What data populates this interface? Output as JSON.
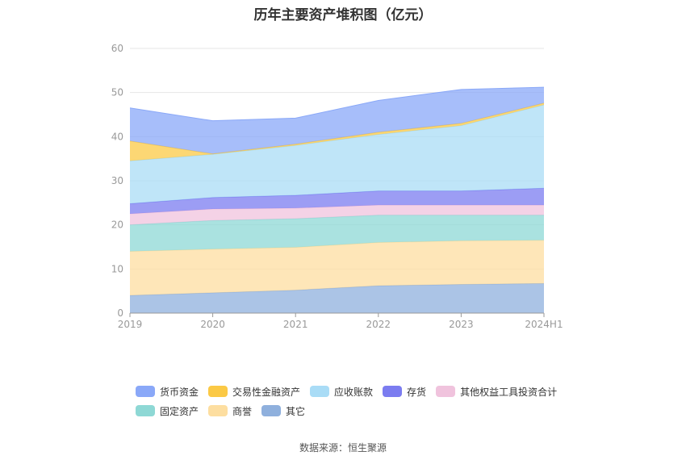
{
  "title": "历年主要资产堆积图（亿元）",
  "source": "数据来源：恒生聚源",
  "chart_data": {
    "type": "area",
    "stacked": true,
    "x": [
      "2019",
      "2020",
      "2021",
      "2022",
      "2023",
      "2024H1"
    ],
    "ylim": [
      0,
      60
    ],
    "yticks": [
      0,
      10,
      20,
      30,
      40,
      50,
      60
    ],
    "grid": true,
    "legend_position": "bottom",
    "series": [
      {
        "name": "其它",
        "color": "#8fb0dd",
        "values": [
          4.0,
          4.6,
          5.2,
          6.2,
          6.5,
          6.7
        ]
      },
      {
        "name": "商誉",
        "color": "#fddea0",
        "values": [
          10.0,
          9.9,
          9.7,
          9.8,
          9.9,
          9.8
        ]
      },
      {
        "name": "固定资产",
        "color": "#8ed8d5",
        "values": [
          6.0,
          6.5,
          6.5,
          6.2,
          5.8,
          5.7
        ]
      },
      {
        "name": "其他权益工具投资合计",
        "color": "#f0c3dd",
        "values": [
          2.5,
          2.6,
          2.4,
          2.3,
          2.3,
          2.3
        ]
      },
      {
        "name": "存货",
        "color": "#7b7cf0",
        "values": [
          2.3,
          2.6,
          2.9,
          3.2,
          3.2,
          3.8
        ]
      },
      {
        "name": "应收账款",
        "color": "#a9dcf6",
        "values": [
          9.7,
          9.8,
          11.3,
          12.8,
          14.8,
          18.9
        ]
      },
      {
        "name": "交易性金融资产",
        "color": "#fbc945",
        "values": [
          4.5,
          0.1,
          0.3,
          0.5,
          0.5,
          0.4
        ]
      },
      {
        "name": "货币资金",
        "color": "#8aa8f8",
        "values": [
          7.5,
          7.5,
          5.9,
          7.2,
          7.7,
          3.6
        ]
      }
    ],
    "legend_order": [
      "货币资金",
      "交易性金融资产",
      "应收账款",
      "存货",
      "其他权益工具投资合计",
      "固定资产",
      "商誉",
      "其它"
    ]
  }
}
